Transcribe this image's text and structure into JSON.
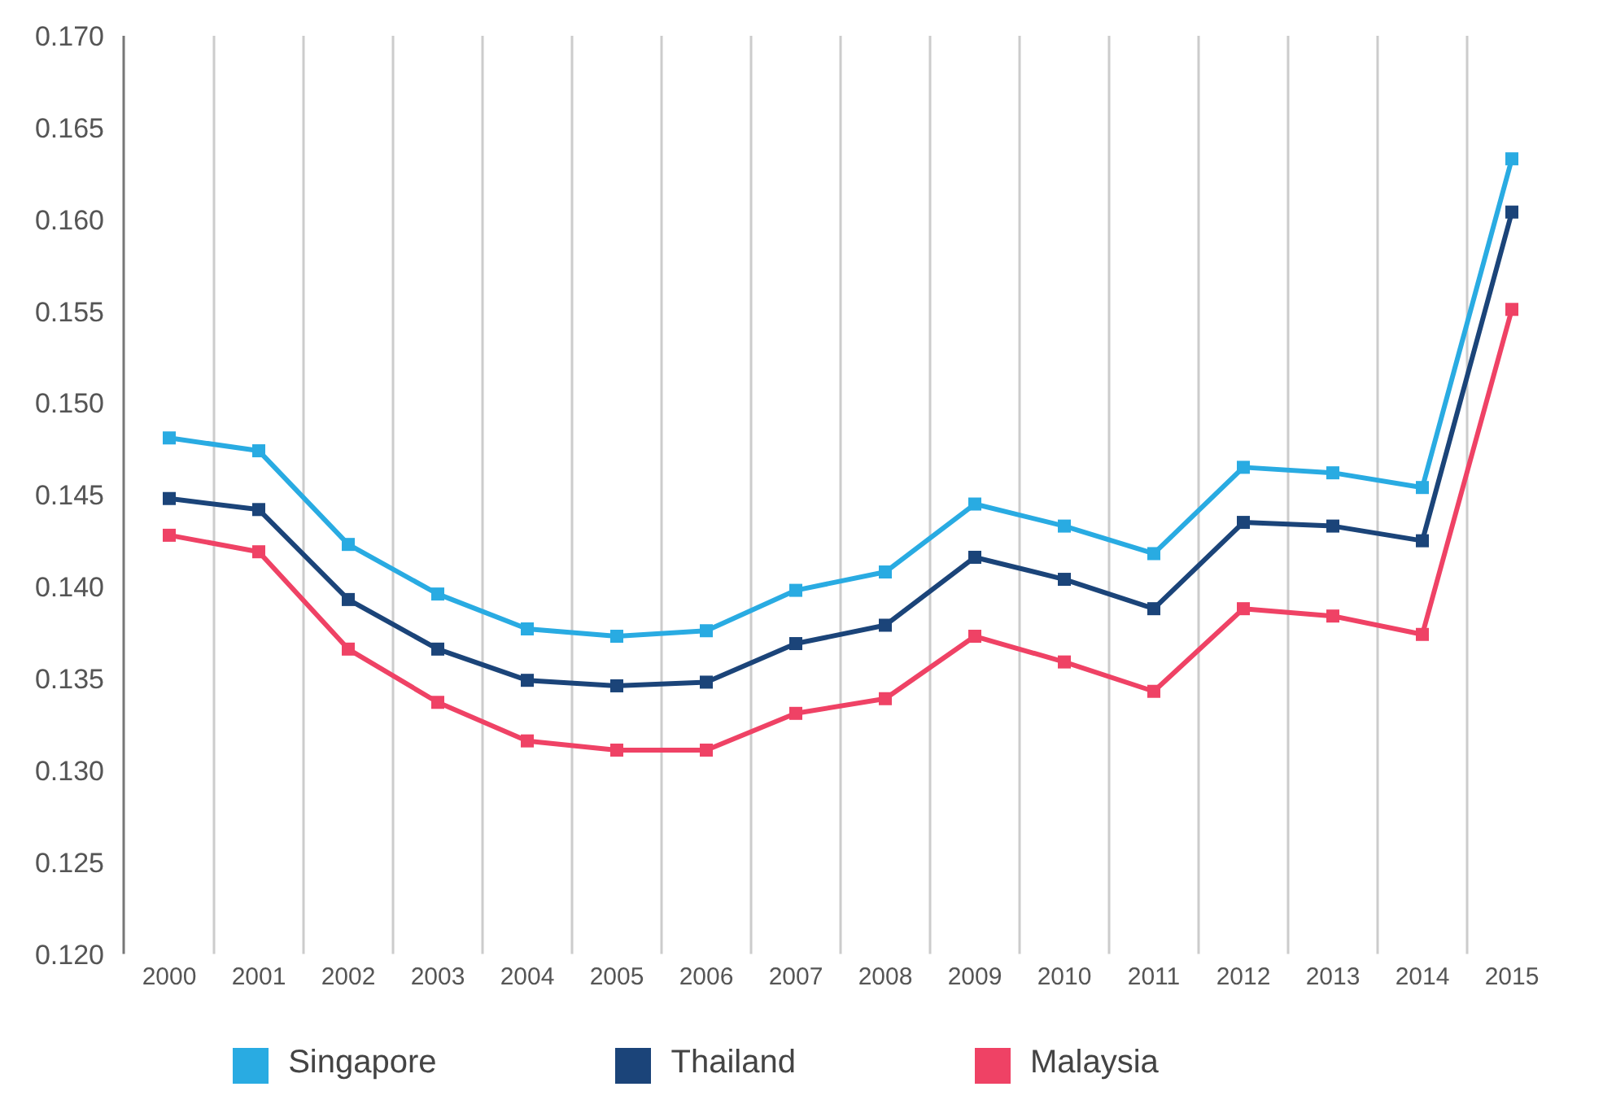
{
  "chart_data": {
    "type": "line",
    "categories": [
      "2000",
      "2001",
      "2002",
      "2003",
      "2004",
      "2005",
      "2006",
      "2007",
      "2008",
      "2009",
      "2010",
      "2011",
      "2012",
      "2013",
      "2014",
      "2015"
    ],
    "series": [
      {
        "name": "Singapore",
        "color": "#29abe2",
        "values": [
          0.1481,
          0.1474,
          0.1423,
          0.1396,
          0.1377,
          0.1373,
          0.1376,
          0.1398,
          0.1408,
          0.1445,
          0.1433,
          0.1418,
          0.1465,
          0.1462,
          0.1454,
          0.1633
        ]
      },
      {
        "name": "Thailand",
        "color": "#1b4479",
        "values": [
          0.1448,
          0.1442,
          0.1393,
          0.1366,
          0.1349,
          0.1346,
          0.1348,
          0.1369,
          0.1379,
          0.1416,
          0.1404,
          0.1388,
          0.1435,
          0.1433,
          0.1425,
          0.1604
        ]
      },
      {
        "name": "Malaysia",
        "color": "#ef4265",
        "values": [
          0.1428,
          0.1419,
          0.1366,
          0.1337,
          0.1316,
          0.1311,
          0.1311,
          0.1331,
          0.1339,
          0.1373,
          0.1359,
          0.1343,
          0.1388,
          0.1384,
          0.1374,
          0.1551
        ]
      }
    ],
    "ylim": [
      0.12,
      0.17
    ],
    "yticks": [
      {
        "value": 0.12,
        "label": "0.120"
      },
      {
        "value": 0.125,
        "label": "0.125"
      },
      {
        "value": 0.13,
        "label": "0.130"
      },
      {
        "value": 0.135,
        "label": "0.135"
      },
      {
        "value": 0.14,
        "label": "0.140"
      },
      {
        "value": 0.145,
        "label": "0.145"
      },
      {
        "value": 0.15,
        "label": "0.150"
      },
      {
        "value": 0.155,
        "label": "0.155"
      },
      {
        "value": 0.16,
        "label": "0.160"
      },
      {
        "value": 0.165,
        "label": "0.165"
      },
      {
        "value": 0.17,
        "label": "0.170"
      }
    ],
    "grid": "x",
    "legend": "bottom",
    "marker": "square",
    "line_style": "solid"
  }
}
